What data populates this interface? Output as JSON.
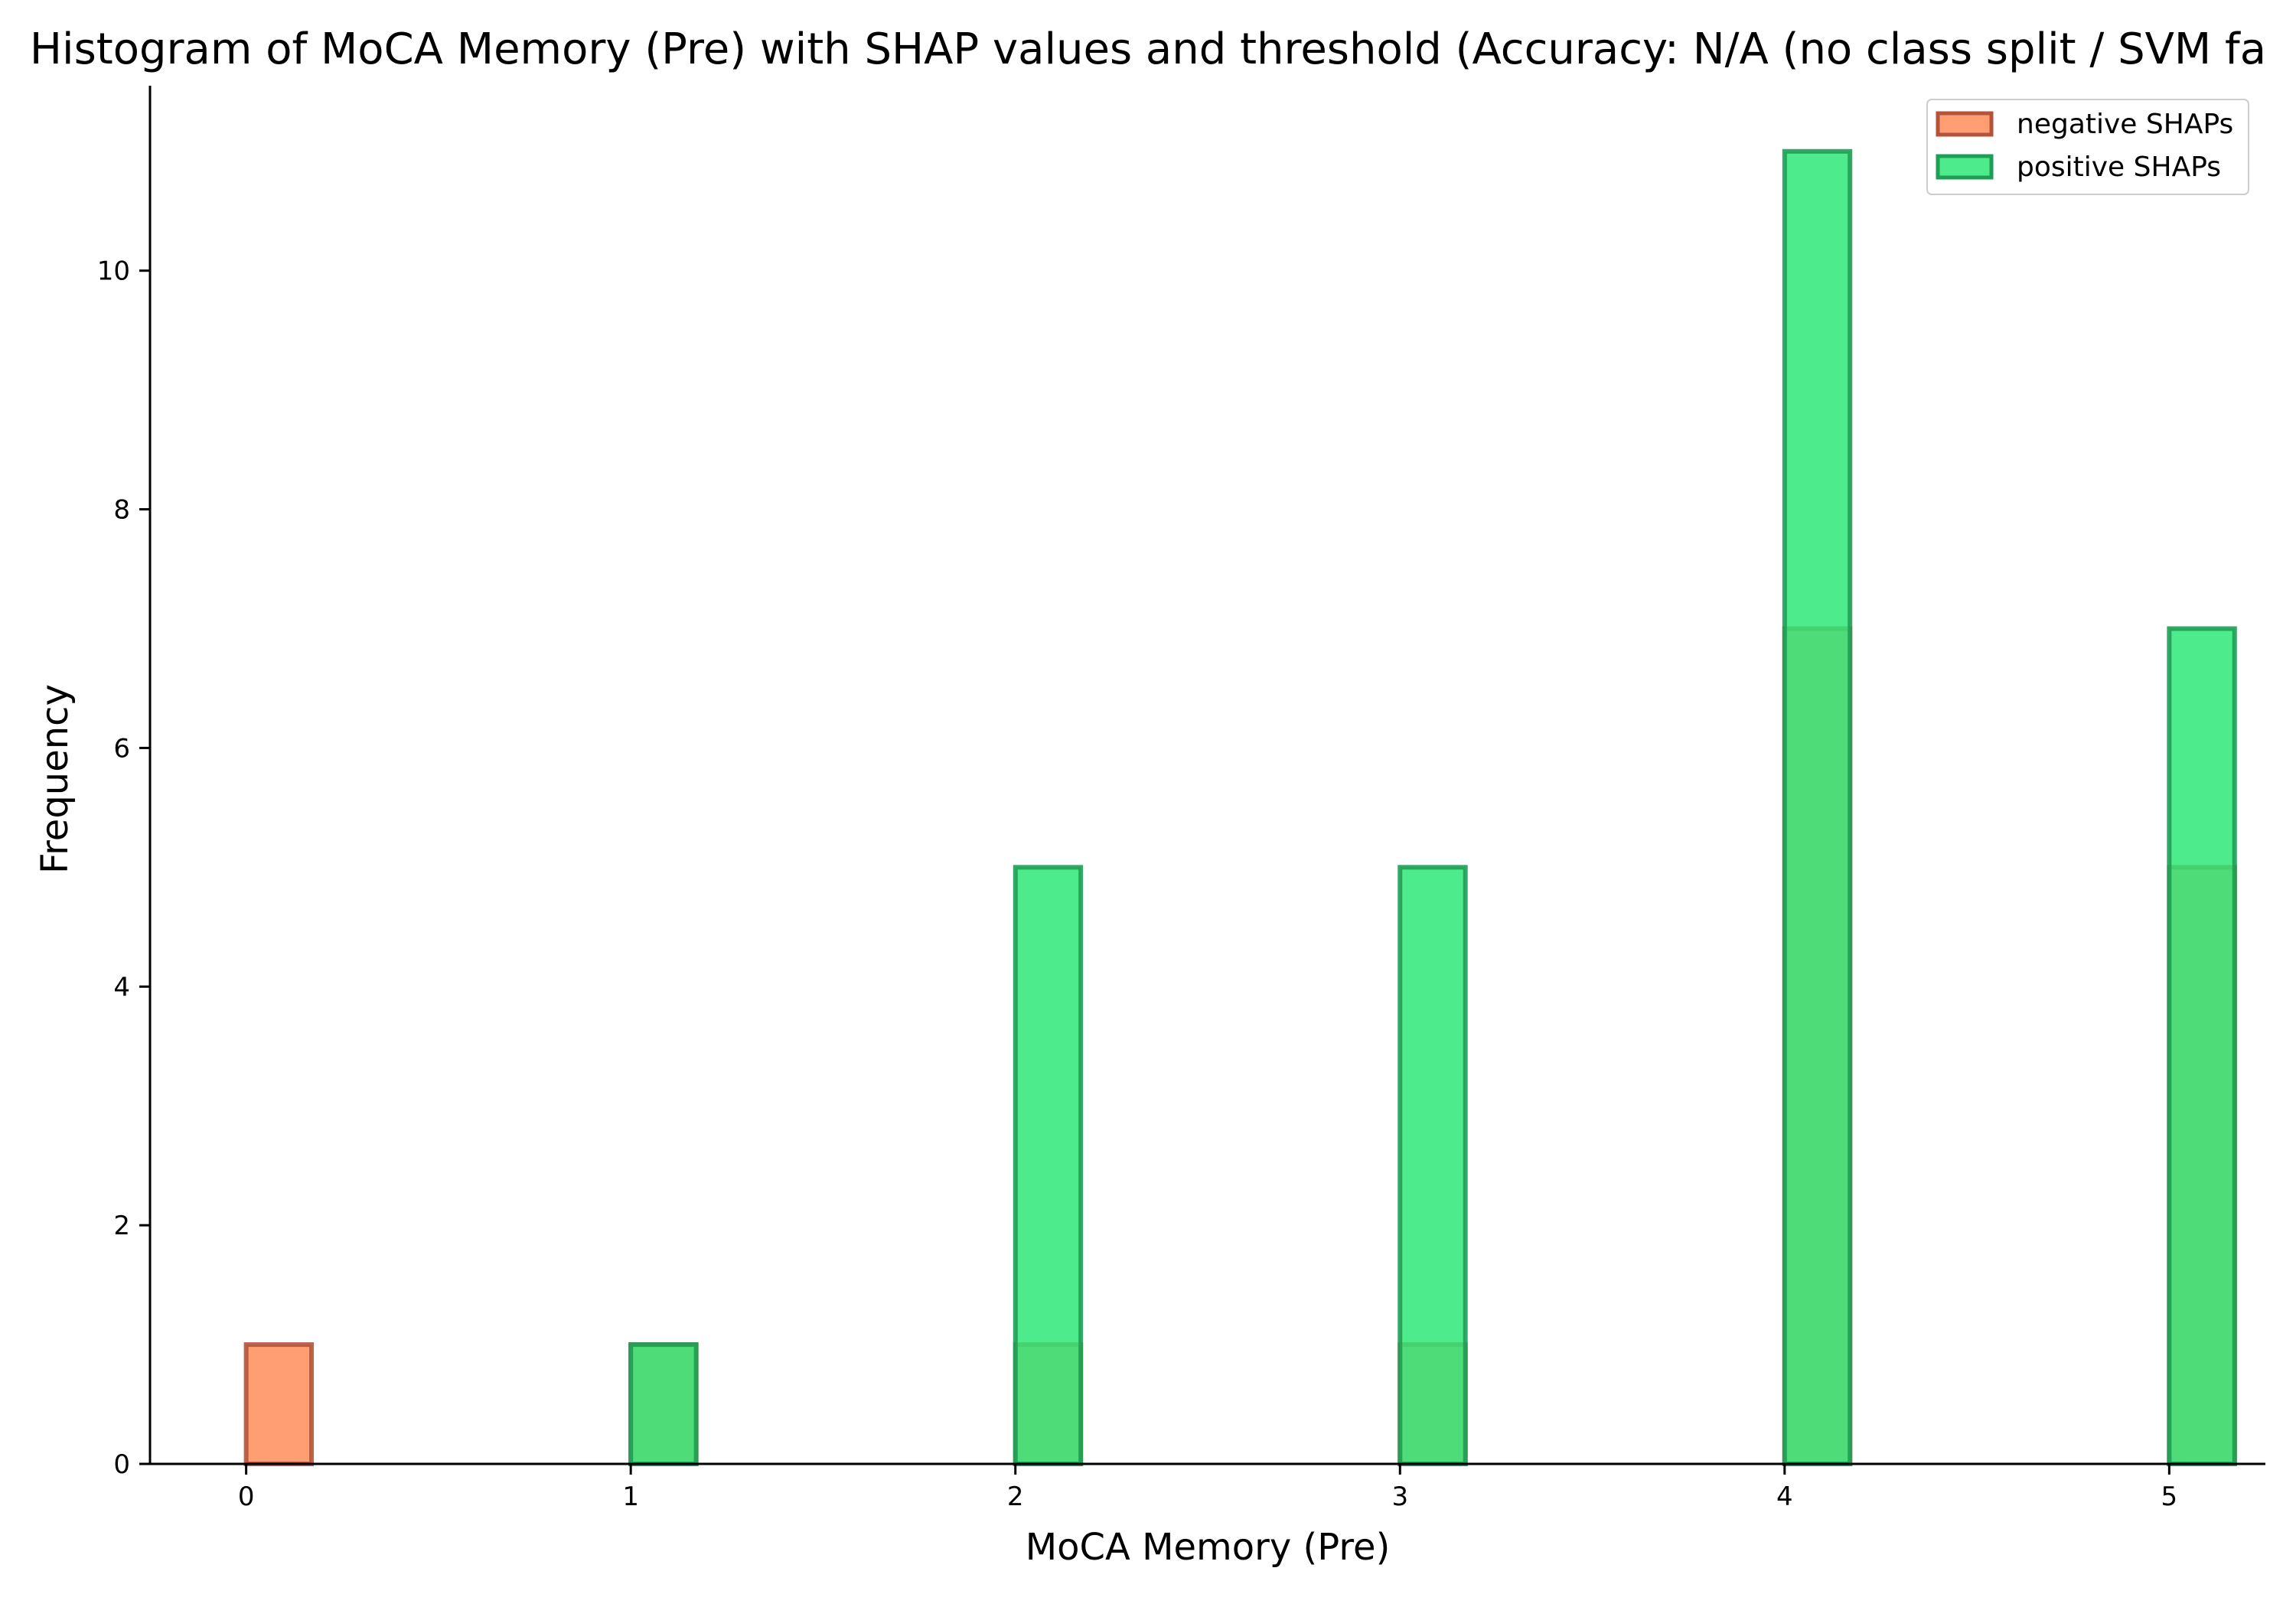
{
  "chart_data": {
    "type": "bar",
    "title": "Histogram of MoCA Memory (Pre) with SHAP values and threshold (Accuracy: N/A (no class split / SVM fa",
    "xlabel": "MoCA Memory (Pre)",
    "ylabel": "Frequency",
    "x_ticks": [
      "0",
      "1",
      "2",
      "3",
      "4",
      "5"
    ],
    "y_ticks": [
      "0",
      "2",
      "4",
      "6",
      "8",
      "10"
    ],
    "xlim": [
      -0.25,
      5.25
    ],
    "ylim": [
      0,
      11.55
    ],
    "grid": false,
    "legend_position": "top-right",
    "bar_span": [
      -0.0,
      0.17
    ],
    "series": [
      {
        "name": "negative SHAPs",
        "face_color": "#ff8c5a",
        "edge_color": "#b5533a",
        "points": [
          {
            "x": 0,
            "value": 1
          },
          {
            "x": 1,
            "value": 1
          },
          {
            "x": 2,
            "value": 1
          },
          {
            "x": 3,
            "value": 1
          },
          {
            "x": 4,
            "value": 7
          },
          {
            "x": 5,
            "value": 5
          }
        ]
      },
      {
        "name": "positive SHAPs",
        "face_color": "#2ee878",
        "edge_color": "#1f9e55",
        "points": [
          {
            "x": 1,
            "value": 1
          },
          {
            "x": 2,
            "value": 5
          },
          {
            "x": 3,
            "value": 5
          },
          {
            "x": 4,
            "value": 11
          },
          {
            "x": 5,
            "value": 7
          }
        ]
      }
    ]
  }
}
